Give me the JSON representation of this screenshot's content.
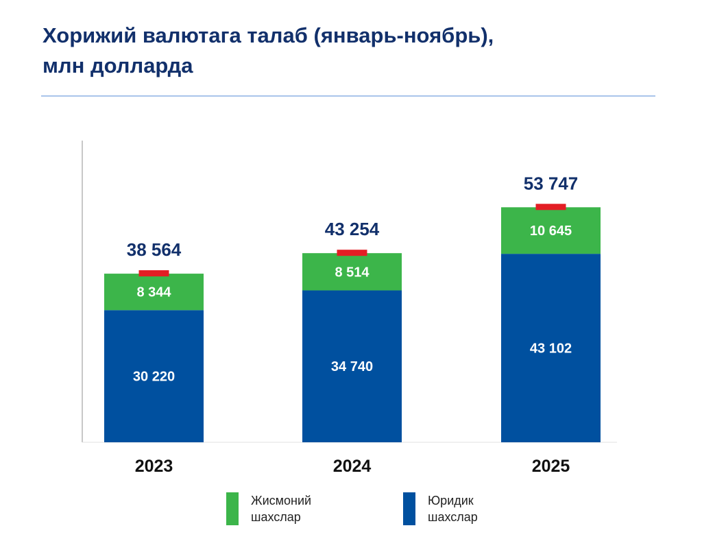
{
  "title_line1": "Хорижий валютага талаб (январь-ноябрь),",
  "title_line2": "млн долларда",
  "colors": {
    "green": "#3cb54a",
    "blue": "#00509f",
    "marker": "#e31e24",
    "title": "#12306b"
  },
  "chart_data": {
    "type": "bar",
    "stacked": true,
    "categories": [
      "2023",
      "2024",
      "2025"
    ],
    "series": [
      {
        "name": "Юридик шахслар",
        "values": [
          30220,
          34740,
          43102
        ],
        "labels": [
          "30 220",
          "34 740",
          "43 102"
        ],
        "color": "#00509f"
      },
      {
        "name": "Жисмоний шахслар",
        "values": [
          8344,
          8514,
          10645
        ],
        "labels": [
          "8 344",
          "8 514",
          "10 645"
        ],
        "color": "#3cb54a"
      }
    ],
    "totals": [
      38564,
      43254,
      53747
    ],
    "total_labels": [
      "38 564",
      "43 254",
      "53 747"
    ],
    "ylim": [
      0,
      69000
    ],
    "grid": false,
    "legend_position": "bottom"
  },
  "legend": [
    {
      "line1": "Жисмоний",
      "line2": "шахслар"
    },
    {
      "line1": "Юридик",
      "line2": "шахслар"
    }
  ]
}
